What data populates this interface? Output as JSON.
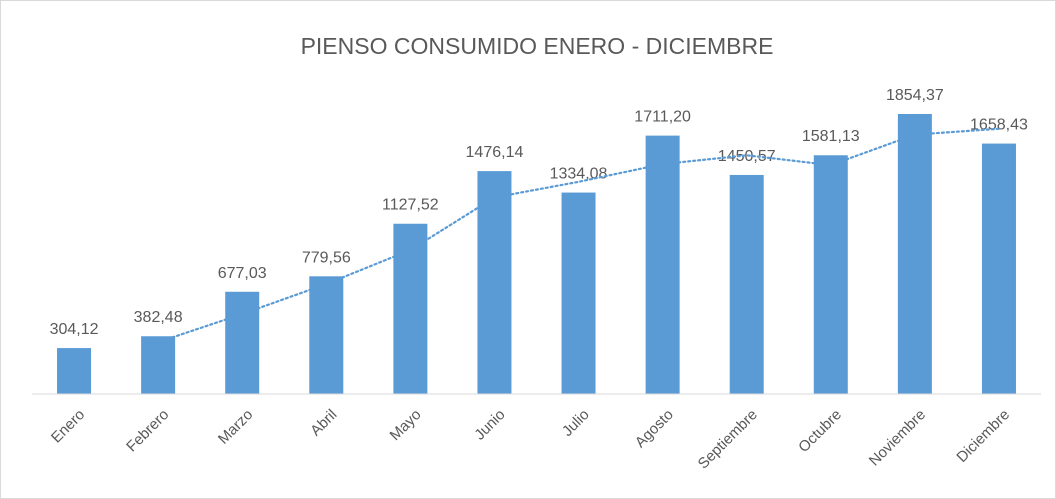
{
  "chart_data": {
    "type": "bar",
    "title": "PIENSO CONSUMIDO ENERO - DICIEMBRE",
    "categories": [
      "Enero",
      "Febrero",
      "Marzo",
      "Abril",
      "Mayo",
      "Junio",
      "Julio",
      "Agosto",
      "Septiembre",
      "Octubre",
      "Noviembre",
      "Diciembre"
    ],
    "values": [
      304.12,
      382.48,
      677.03,
      779.56,
      1127.52,
      1476.14,
      1334.08,
      1711.2,
      1450.57,
      1581.13,
      1854.37,
      1658.43
    ],
    "value_labels": [
      "304,12",
      "382,48",
      "677,03",
      "779,56",
      "1127,52",
      "1476,14",
      "1334,08",
      "1711,20",
      "1450,57",
      "1581,13",
      "1854,37",
      "1658,43"
    ],
    "color": "#5b9bd5",
    "ylim": [
      0,
      2000
    ],
    "trendline": {
      "kind": "moving_average",
      "period": 2,
      "style": "dotted",
      "color": "#5b9bd5"
    }
  }
}
